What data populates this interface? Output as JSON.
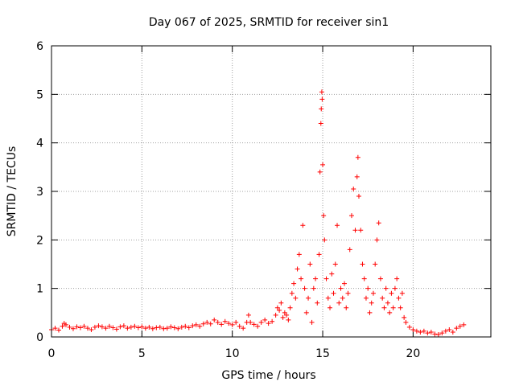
{
  "chart_data": {
    "type": "scatter",
    "title": "Day 067 of 2025, SRMTID for receiver sin1",
    "xlabel": "GPS time / hours",
    "ylabel": "SRMTID / TECUs",
    "xlim": [
      0,
      24.3
    ],
    "ylim": [
      0,
      6
    ],
    "xticks": [
      0,
      5,
      10,
      15,
      20
    ],
    "yticks": [
      0,
      1,
      2,
      3,
      4,
      5,
      6
    ],
    "grid": true,
    "marker": "+",
    "series": [
      {
        "name": "sin1",
        "color": "#ff0000",
        "points": [
          [
            0.0,
            0.15
          ],
          [
            0.2,
            0.18
          ],
          [
            0.4,
            0.14
          ],
          [
            0.6,
            0.22
          ],
          [
            0.7,
            0.28
          ],
          [
            0.8,
            0.25
          ],
          [
            1.0,
            0.2
          ],
          [
            1.2,
            0.17
          ],
          [
            1.4,
            0.21
          ],
          [
            1.6,
            0.19
          ],
          [
            1.8,
            0.22
          ],
          [
            2.0,
            0.18
          ],
          [
            2.2,
            0.15
          ],
          [
            2.4,
            0.2
          ],
          [
            2.6,
            0.23
          ],
          [
            2.8,
            0.21
          ],
          [
            3.0,
            0.18
          ],
          [
            3.2,
            0.22
          ],
          [
            3.4,
            0.19
          ],
          [
            3.6,
            0.16
          ],
          [
            3.8,
            0.21
          ],
          [
            4.0,
            0.23
          ],
          [
            4.2,
            0.18
          ],
          [
            4.4,
            0.2
          ],
          [
            4.6,
            0.22
          ],
          [
            4.8,
            0.19
          ],
          [
            5.0,
            0.21
          ],
          [
            5.2,
            0.18
          ],
          [
            5.4,
            0.2
          ],
          [
            5.6,
            0.17
          ],
          [
            5.8,
            0.19
          ],
          [
            6.0,
            0.2
          ],
          [
            6.2,
            0.17
          ],
          [
            6.4,
            0.18
          ],
          [
            6.6,
            0.21
          ],
          [
            6.8,
            0.19
          ],
          [
            7.0,
            0.17
          ],
          [
            7.2,
            0.2
          ],
          [
            7.4,
            0.22
          ],
          [
            7.6,
            0.19
          ],
          [
            7.8,
            0.23
          ],
          [
            8.0,
            0.25
          ],
          [
            8.2,
            0.22
          ],
          [
            8.4,
            0.27
          ],
          [
            8.6,
            0.3
          ],
          [
            8.8,
            0.27
          ],
          [
            9.0,
            0.35
          ],
          [
            9.2,
            0.3
          ],
          [
            9.4,
            0.26
          ],
          [
            9.6,
            0.32
          ],
          [
            9.8,
            0.28
          ],
          [
            10.0,
            0.25
          ],
          [
            10.2,
            0.3
          ],
          [
            10.4,
            0.22
          ],
          [
            10.6,
            0.18
          ],
          [
            10.8,
            0.3
          ],
          [
            10.9,
            0.45
          ],
          [
            11.0,
            0.3
          ],
          [
            11.2,
            0.26
          ],
          [
            11.4,
            0.22
          ],
          [
            11.6,
            0.3
          ],
          [
            11.8,
            0.35
          ],
          [
            12.0,
            0.28
          ],
          [
            12.2,
            0.32
          ],
          [
            12.4,
            0.45
          ],
          [
            12.5,
            0.6
          ],
          [
            12.6,
            0.55
          ],
          [
            12.7,
            0.7
          ],
          [
            12.8,
            0.4
          ],
          [
            12.9,
            0.5
          ],
          [
            13.0,
            0.45
          ],
          [
            13.1,
            0.35
          ],
          [
            13.2,
            0.6
          ],
          [
            13.3,
            0.9
          ],
          [
            13.4,
            1.1
          ],
          [
            13.5,
            0.8
          ],
          [
            13.6,
            1.4
          ],
          [
            13.7,
            1.7
          ],
          [
            13.8,
            1.2
          ],
          [
            13.9,
            2.3
          ],
          [
            14.0,
            1.0
          ],
          [
            14.1,
            0.5
          ],
          [
            14.2,
            0.8
          ],
          [
            14.3,
            1.5
          ],
          [
            14.4,
            0.3
          ],
          [
            14.5,
            1.0
          ],
          [
            14.6,
            1.2
          ],
          [
            14.7,
            0.7
          ],
          [
            14.8,
            1.7
          ],
          [
            14.85,
            3.4
          ],
          [
            14.9,
            4.4
          ],
          [
            14.92,
            4.7
          ],
          [
            14.95,
            5.05
          ],
          [
            14.97,
            4.9
          ],
          [
            15.0,
            3.55
          ],
          [
            15.05,
            2.5
          ],
          [
            15.1,
            2.0
          ],
          [
            15.2,
            1.2
          ],
          [
            15.3,
            0.8
          ],
          [
            15.4,
            0.6
          ],
          [
            15.5,
            1.3
          ],
          [
            15.6,
            0.9
          ],
          [
            15.7,
            1.5
          ],
          [
            15.8,
            2.3
          ],
          [
            15.9,
            0.7
          ],
          [
            16.0,
            1.0
          ],
          [
            16.1,
            0.8
          ],
          [
            16.2,
            1.1
          ],
          [
            16.3,
            0.6
          ],
          [
            16.4,
            0.9
          ],
          [
            16.5,
            1.8
          ],
          [
            16.6,
            2.5
          ],
          [
            16.7,
            3.05
          ],
          [
            16.8,
            2.2
          ],
          [
            16.9,
            3.3
          ],
          [
            16.95,
            3.7
          ],
          [
            17.0,
            2.9
          ],
          [
            17.1,
            2.2
          ],
          [
            17.2,
            1.5
          ],
          [
            17.3,
            1.2
          ],
          [
            17.4,
            0.8
          ],
          [
            17.5,
            1.0
          ],
          [
            17.6,
            0.5
          ],
          [
            17.7,
            0.7
          ],
          [
            17.8,
            0.9
          ],
          [
            17.9,
            1.5
          ],
          [
            18.0,
            2.0
          ],
          [
            18.1,
            2.35
          ],
          [
            18.2,
            1.2
          ],
          [
            18.3,
            0.8
          ],
          [
            18.4,
            0.6
          ],
          [
            18.5,
            1.0
          ],
          [
            18.6,
            0.7
          ],
          [
            18.7,
            0.5
          ],
          [
            18.8,
            0.9
          ],
          [
            18.9,
            0.6
          ],
          [
            19.0,
            1.0
          ],
          [
            19.1,
            1.2
          ],
          [
            19.2,
            0.8
          ],
          [
            19.3,
            0.6
          ],
          [
            19.4,
            0.9
          ],
          [
            19.5,
            0.4
          ],
          [
            19.6,
            0.3
          ],
          [
            19.8,
            0.2
          ],
          [
            20.0,
            0.15
          ],
          [
            20.2,
            0.12
          ],
          [
            20.4,
            0.1
          ],
          [
            20.6,
            0.12
          ],
          [
            20.8,
            0.08
          ],
          [
            21.0,
            0.1
          ],
          [
            21.2,
            0.06
          ],
          [
            21.4,
            0.05
          ],
          [
            21.6,
            0.08
          ],
          [
            21.8,
            0.12
          ],
          [
            22.0,
            0.15
          ],
          [
            22.2,
            0.1
          ],
          [
            22.4,
            0.18
          ],
          [
            22.6,
            0.22
          ],
          [
            22.8,
            0.25
          ]
        ]
      }
    ]
  }
}
